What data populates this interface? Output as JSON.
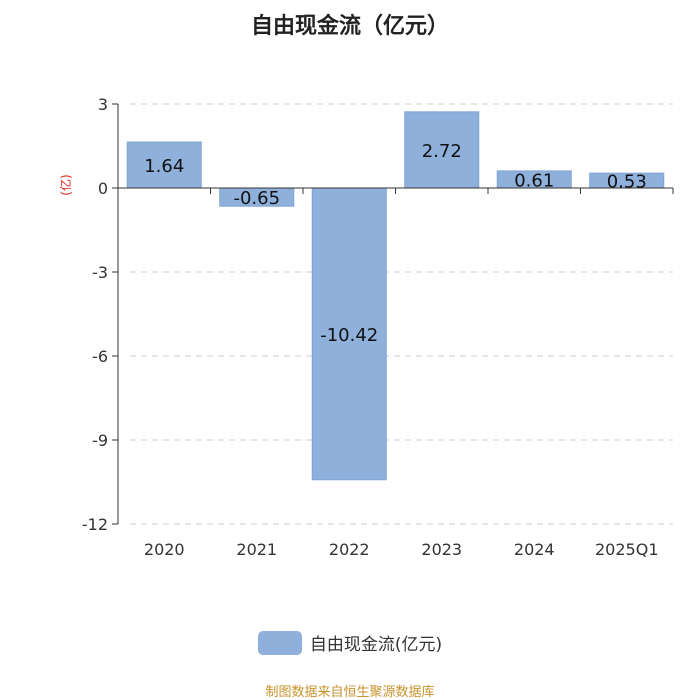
{
  "chart_data": {
    "type": "bar",
    "title": "自由现金流（亿元）",
    "ylabel": "(亿)",
    "categories": [
      "2020",
      "2021",
      "2022",
      "2023",
      "2024",
      "2025Q1"
    ],
    "series": [
      {
        "name": "自由现金流(亿元)",
        "values": [
          1.64,
          -0.65,
          -10.42,
          2.72,
          0.61,
          0.53
        ]
      }
    ],
    "data_labels": [
      "1.64",
      "-0.65",
      "-10.42",
      "2.72",
      "0.61",
      "0.53"
    ],
    "ylim": [
      -12,
      3
    ],
    "yticks": [
      3,
      0,
      -3,
      -6,
      -9,
      -12
    ],
    "grid": true,
    "legend_position": "bottom",
    "colors": {
      "bar": "#8eb0db",
      "bar_edge": "#7fa3d4",
      "ylabel": "#e0261b",
      "source": "#c8922c"
    }
  },
  "footer": {
    "source": "制图数据来自恒生聚源数据库"
  }
}
